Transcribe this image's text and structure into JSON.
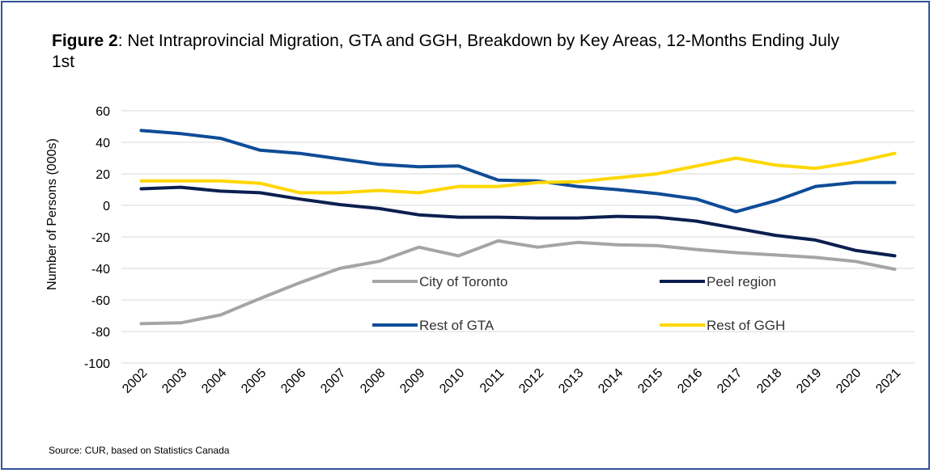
{
  "title_bold": "Figure 2",
  "title_rest": ": Net Intraprovincial Migration, GTA and GGH, Breakdown by Key Areas, 12-Months Ending July 1st",
  "source": "Source: CUR, based on Statistics Canada",
  "chart_data": {
    "type": "line",
    "title": "Figure 2: Net Intraprovincial Migration, GTA and GGH, Breakdown by Key Areas, 12-Months Ending July 1st",
    "ylabel": "Number of Persons (000s)",
    "xlabel": "",
    "ylim": [
      -100,
      60
    ],
    "yticks": [
      60,
      40,
      20,
      0,
      -20,
      -40,
      -60,
      -80,
      -100
    ],
    "grid": true,
    "legend_position": "inside-bottom-right",
    "categories": [
      "2002",
      "2003",
      "2004",
      "2005",
      "2006",
      "2007",
      "2008",
      "2009",
      "2010",
      "2011",
      "2012",
      "2013",
      "2014",
      "2015",
      "2016",
      "2017",
      "2018",
      "2019",
      "2020",
      "2021"
    ],
    "series": [
      {
        "name": "City of Toronto",
        "color": "#a5a5a5",
        "values": [
          -75,
          -74.5,
          -69.5,
          -59,
          -49,
          -40,
          -35.5,
          -26.5,
          -32,
          -22.5,
          -26.5,
          -23.5,
          -25,
          -25.5,
          -28,
          -30,
          -31.5,
          -33,
          -35.5,
          -40.5
        ]
      },
      {
        "name": "Peel region",
        "color": "#0b1f4f",
        "values": [
          10.5,
          11.5,
          9,
          8,
          4,
          0.5,
          -2,
          -6,
          -7.5,
          -7.5,
          -8,
          -8,
          -7,
          -7.5,
          -10,
          -14.5,
          -19,
          -22,
          -28.5,
          -32
        ]
      },
      {
        "name": "Rest of GTA",
        "color": "#0f4c97",
        "values": [
          47.5,
          45.5,
          42.5,
          35,
          33,
          29.5,
          26,
          24.5,
          25,
          16,
          15.5,
          12,
          10,
          7.5,
          4,
          -4,
          3,
          12,
          14.5,
          14.5
        ]
      },
      {
        "name": "Rest of GGH",
        "color": "#ffd700",
        "values": [
          15.5,
          15.5,
          15.5,
          14,
          8,
          8,
          9.5,
          8,
          12,
          12,
          14.5,
          15,
          17.5,
          20,
          25,
          30,
          25.5,
          23.5,
          27.5,
          33
        ]
      }
    ]
  }
}
